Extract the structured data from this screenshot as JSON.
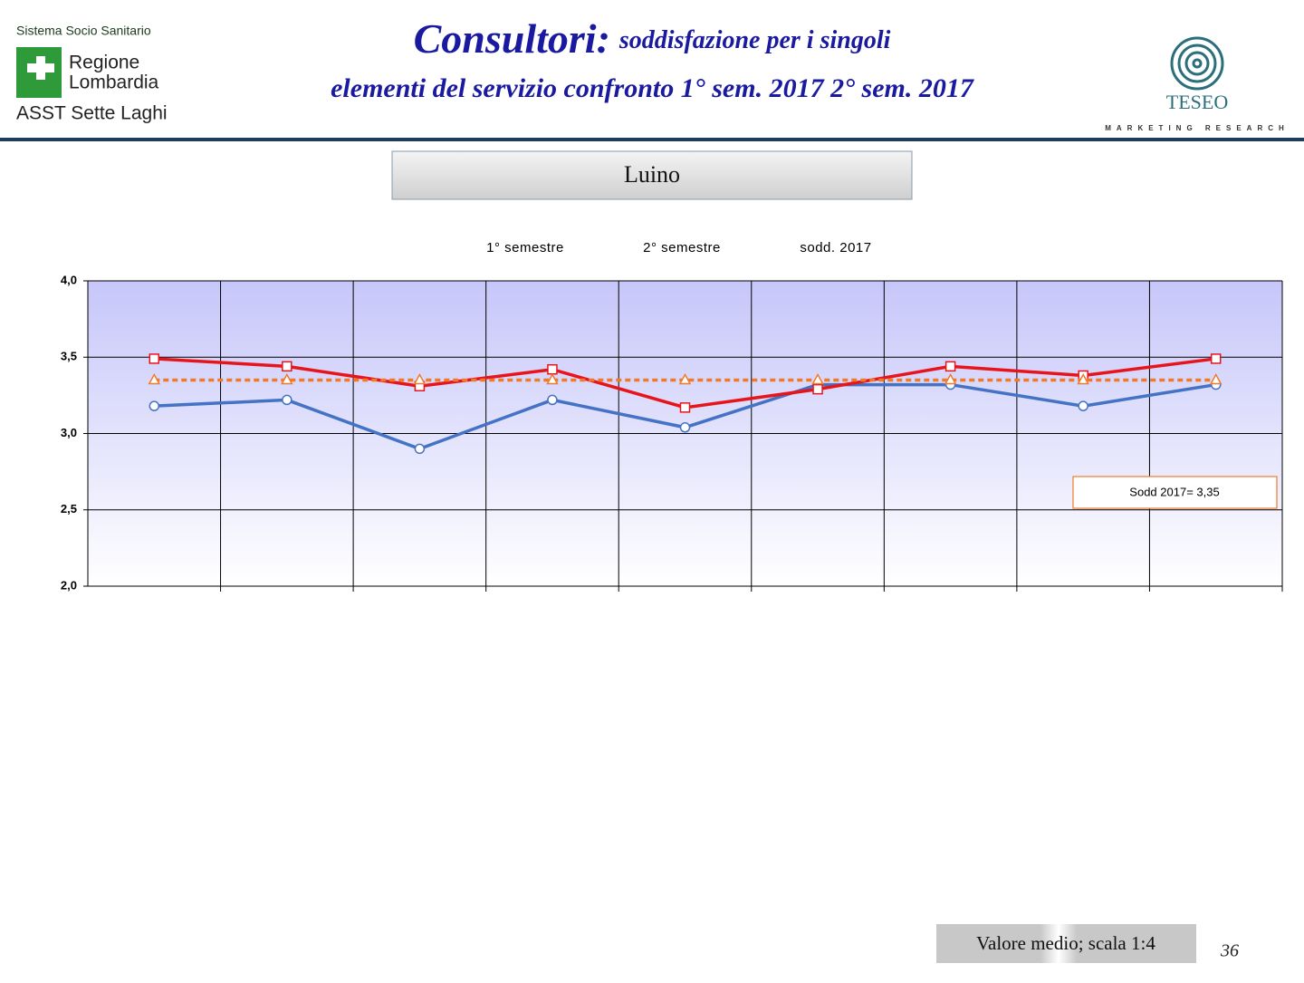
{
  "header": {
    "logo_line1": "Sistema Socio Sanitario",
    "logo_line2": "Regione",
    "logo_line3": "Lombardia",
    "logo_line4": "ASST Sette Laghi",
    "title_main": "Consultori:",
    "title_sub": "soddisfazione per i singoli",
    "title_line2": "elementi del servizio confronto 1° sem. 2017 2° sem. 2017",
    "brand": "TESEO",
    "brand_tagline": "MARKETING RESEARCH"
  },
  "section": "Luino",
  "chart_data": {
    "type": "line",
    "categories": [
      null,
      null,
      null,
      null,
      null,
      null,
      null,
      null,
      null
    ],
    "series": [
      {
        "name": "1° semestre",
        "color": "#4472c4",
        "marker": "circle",
        "dashed": false,
        "values": [
          3.18,
          3.22,
          2.9,
          3.22,
          3.04,
          3.32,
          3.32,
          3.18,
          3.32
        ]
      },
      {
        "name": "2° semestre",
        "color": "#e8141c",
        "marker": "square",
        "dashed": false,
        "values": [
          3.49,
          3.44,
          3.31,
          3.42,
          3.17,
          3.29,
          3.44,
          3.38,
          3.49
        ]
      },
      {
        "name": "sodd. 2017",
        "color": "#f07a2a",
        "marker": "triangle",
        "dashed": true,
        "values": [
          3.35,
          3.35,
          3.35,
          3.35,
          3.35,
          3.35,
          3.35,
          3.35,
          3.35
        ]
      }
    ],
    "ylim": [
      2,
      4
    ],
    "yticks": [
      {
        "value": 2,
        "label": "2,0"
      },
      {
        "value": 2.5,
        "label": "2,5"
      },
      {
        "value": 3,
        "label": "3,0"
      },
      {
        "value": 3.5,
        "label": "3,5"
      },
      {
        "value": 4,
        "label": "4,0"
      }
    ],
    "grid": true,
    "annotation": "Sodd 2017= 3,35"
  },
  "footer": {
    "note": "Valore medio; scala 1:4",
    "page": "36"
  }
}
